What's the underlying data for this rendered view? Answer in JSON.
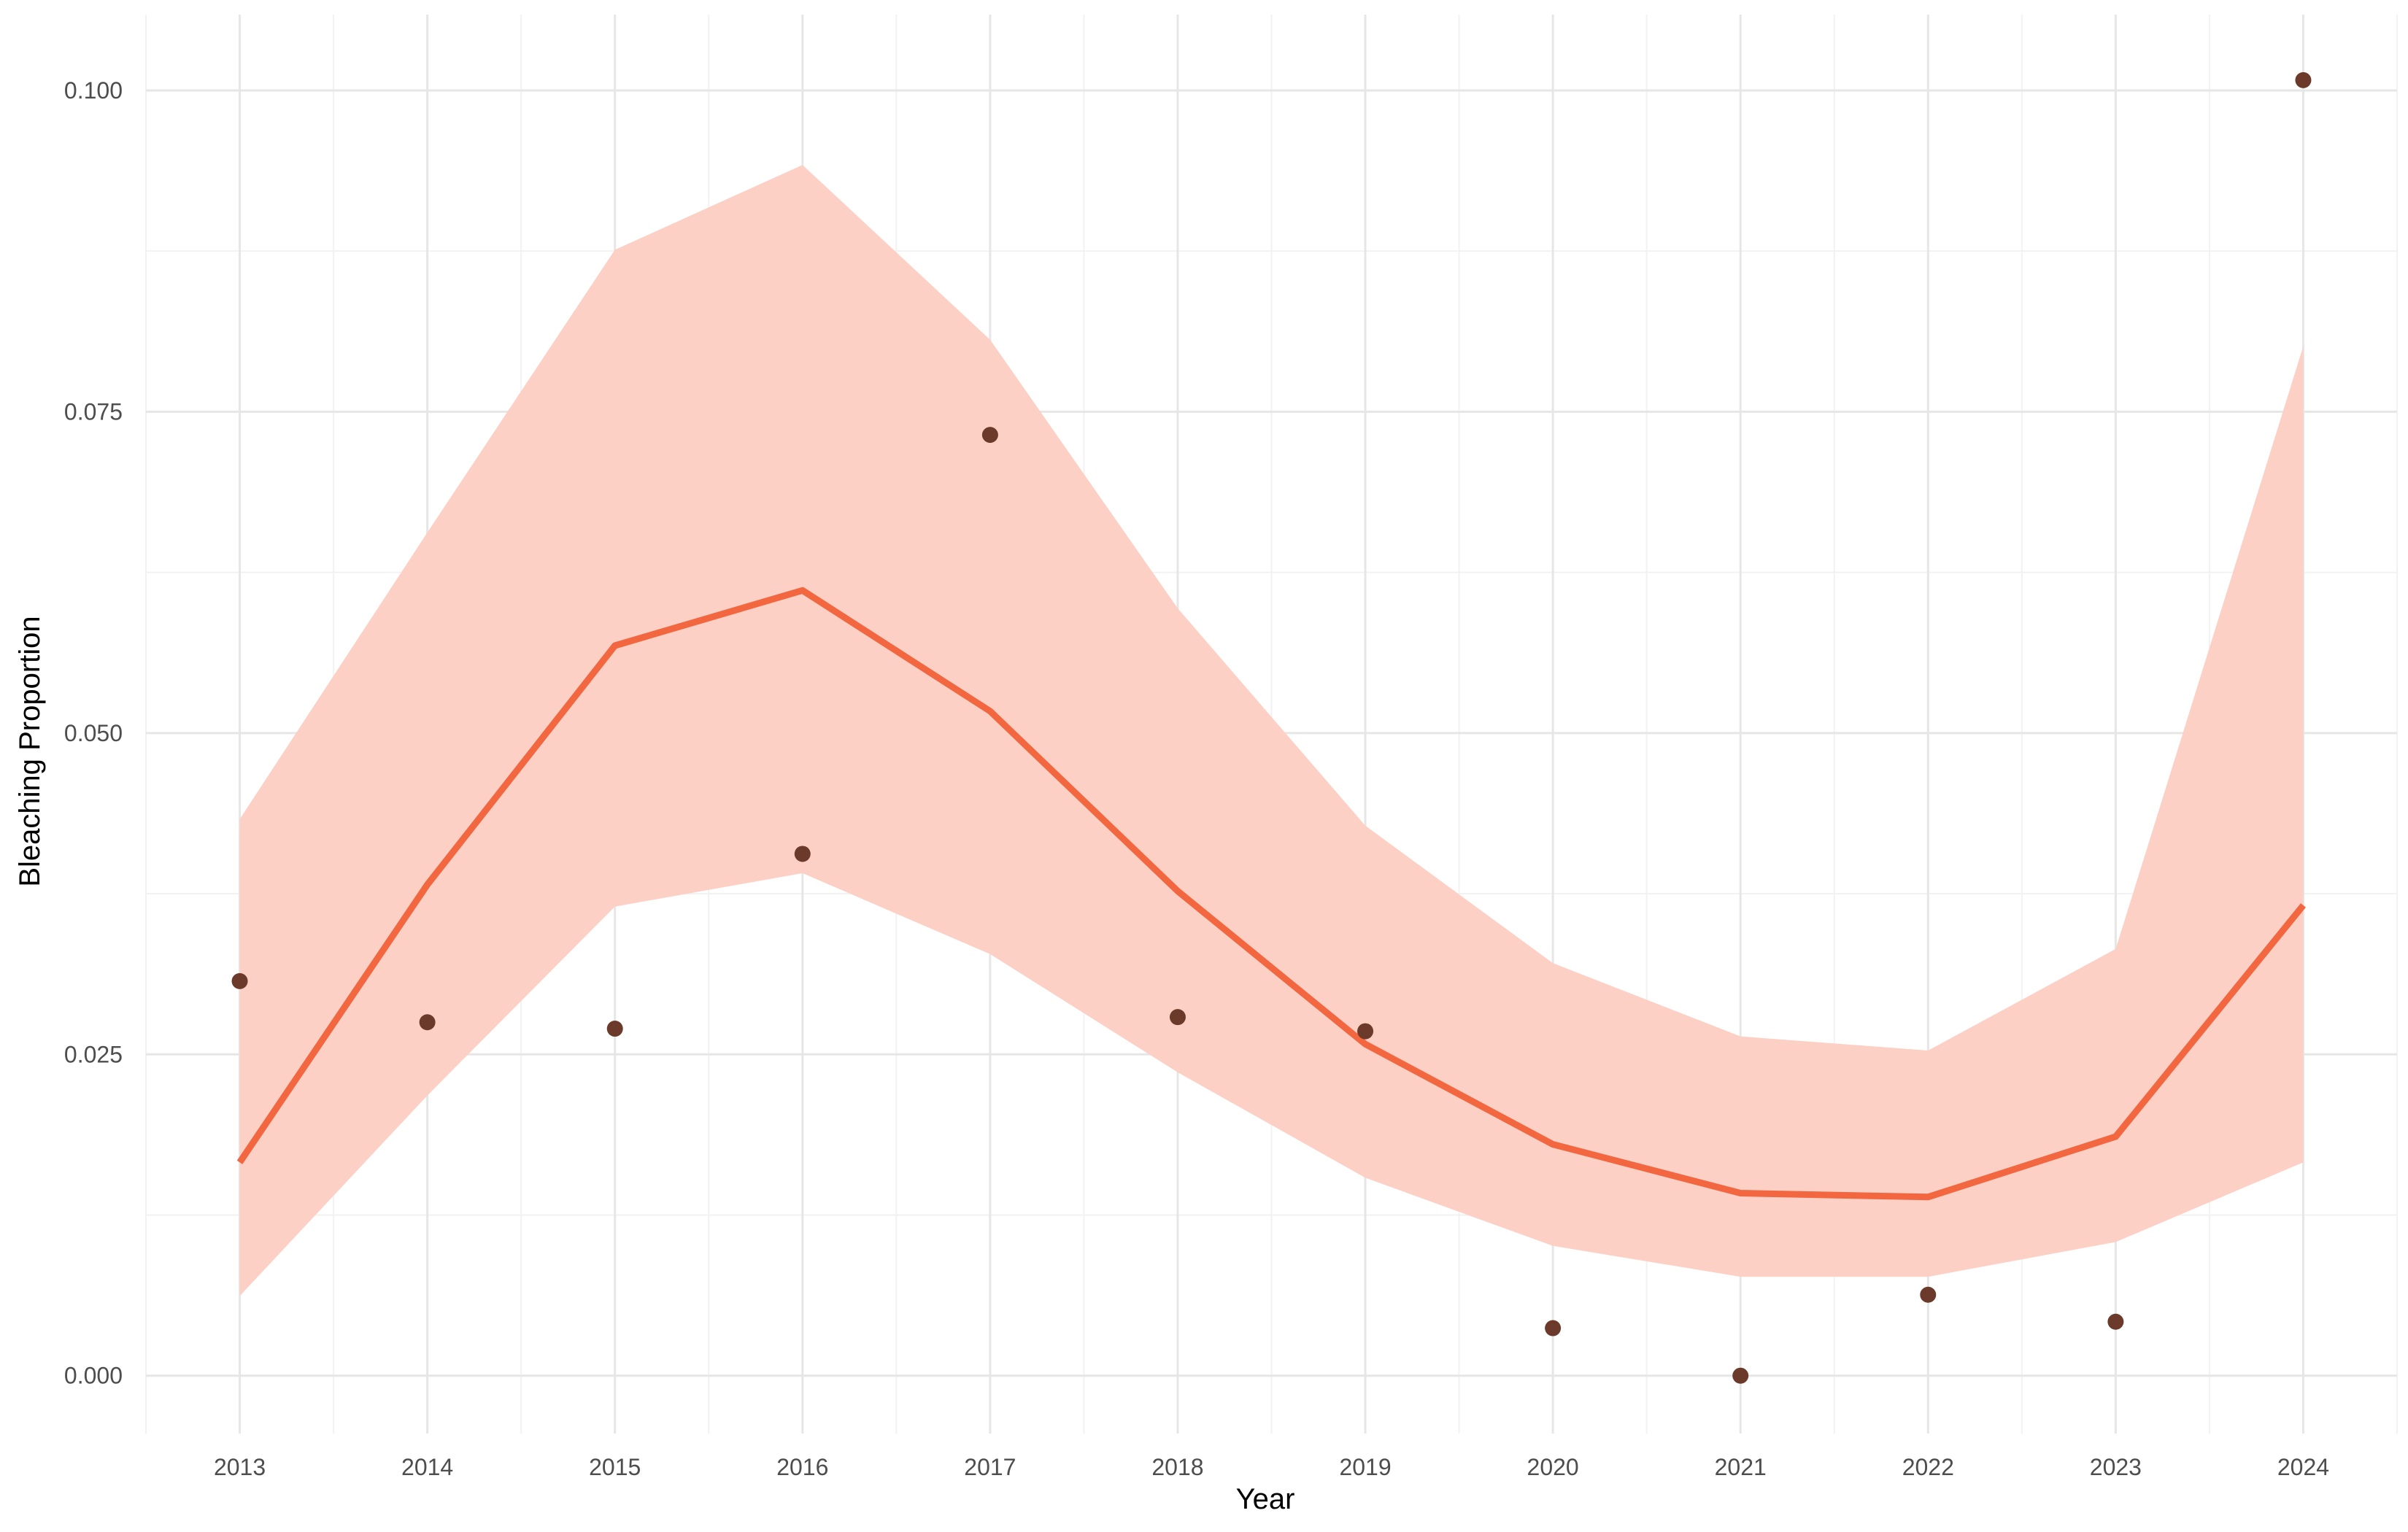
{
  "chart_data": {
    "type": "line",
    "title": "",
    "xlabel": "Year",
    "ylabel": "Bleaching Proportion",
    "xlim": [
      2012.5,
      2024.5
    ],
    "ylim": [
      -0.0045,
      0.1059
    ],
    "grid": true,
    "legend": "none",
    "x_ticks": [
      "2013",
      "2014",
      "2015",
      "2016",
      "2017",
      "2018",
      "2019",
      "2020",
      "2021",
      "2022",
      "2023",
      "2024"
    ],
    "y_ticks": [
      "0.000",
      "0.025",
      "0.050",
      "0.075",
      "0.100"
    ],
    "x": [
      2013,
      2014,
      2015,
      2016,
      2017,
      2018,
      2019,
      2020,
      2021,
      2022,
      2023,
      2024
    ],
    "observed": [
      0.0307,
      0.0275,
      0.027,
      0.0406,
      0.0732,
      0.0279,
      0.0268,
      0.0037,
      0.0,
      0.0063,
      0.0042,
      0.1008
    ],
    "fitted": [
      0.0166,
      0.0382,
      0.0568,
      0.0611,
      0.0517,
      0.0377,
      0.0258,
      0.018,
      0.0142,
      0.0139,
      0.0186,
      0.0366
    ],
    "lower": [
      0.0062,
      0.0218,
      0.0365,
      0.0391,
      0.0328,
      0.0236,
      0.0154,
      0.0101,
      0.0077,
      0.0077,
      0.0104,
      0.0166
    ],
    "upper": [
      0.0433,
      0.0656,
      0.0876,
      0.0942,
      0.0806,
      0.0597,
      0.0428,
      0.0321,
      0.0264,
      0.0253,
      0.0332,
      0.0801
    ],
    "colors": {
      "line": "#f26640",
      "ribbon": "#fcd0c5",
      "points": "#6b3a2a",
      "grid_major": "#e6e6e6",
      "grid_minor": "#f2f2f2"
    }
  }
}
